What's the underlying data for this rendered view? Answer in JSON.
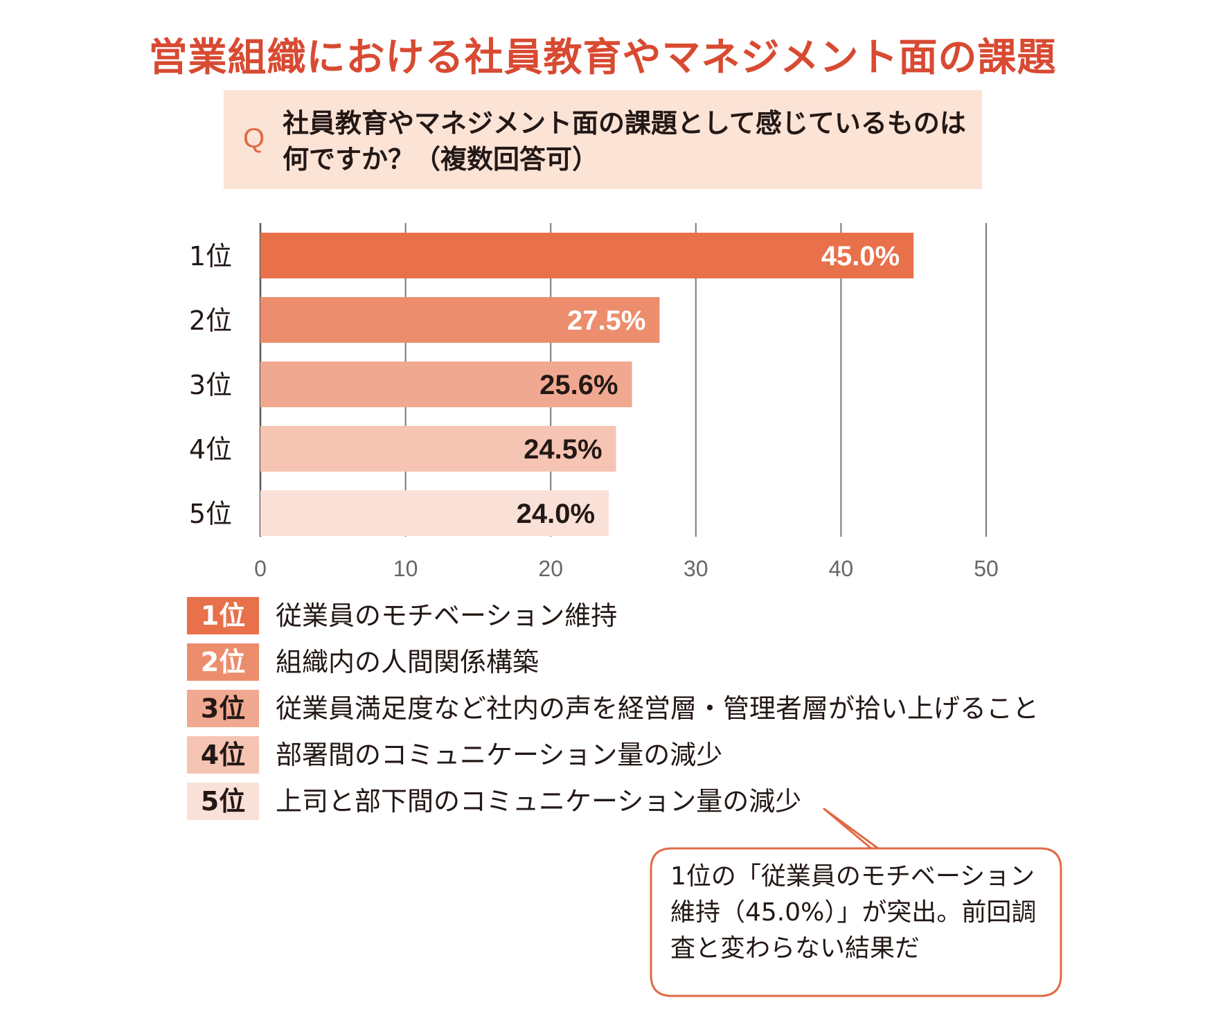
{
  "title": "営業組織における社員教育やマネジメント面の課題",
  "question": {
    "mark": "Q",
    "line1": "社員教育やマネジメント面の課題として感じているものは",
    "line2": "何ですか？（複数回答可）"
  },
  "colors": {
    "title": "#d84a32",
    "question_bg": "#fbe3d6",
    "rank1": "#e8704a",
    "rank2": "#ec8e6e",
    "rank3": "#f1a891",
    "rank4": "#f5c4b3",
    "rank5": "#fae1d7",
    "callout_border": "#e06a45"
  },
  "chart_data": {
    "type": "bar",
    "orientation": "horizontal",
    "categories": [
      "1位",
      "2位",
      "3位",
      "4位",
      "5位"
    ],
    "values": [
      45.0,
      27.5,
      25.6,
      24.5,
      24.0
    ],
    "value_labels": [
      "45.0%",
      "27.5%",
      "25.6%",
      "24.5%",
      "24.0%"
    ],
    "xlim": [
      0,
      50
    ],
    "xticks": [
      0,
      10,
      20,
      30,
      40,
      50
    ],
    "grid": true
  },
  "legend": [
    {
      "rank": "1位",
      "text": "従業員のモチベーション維持"
    },
    {
      "rank": "2位",
      "text": "組織内の人間関係構築"
    },
    {
      "rank": "3位",
      "text": "従業員満足度など社内の声を経営層・管理者層が拾い上げること"
    },
    {
      "rank": "4位",
      "text": "部署間のコミュニケーション量の減少"
    },
    {
      "rank": "5位",
      "text": "上司と部下間のコミュニケーション量の減少"
    }
  ],
  "callout": {
    "line1": "1位の「従業員のモチベーション",
    "line2": "維持（45.0%）」が突出。前回調",
    "line3": "査と変わらない結果だ"
  }
}
